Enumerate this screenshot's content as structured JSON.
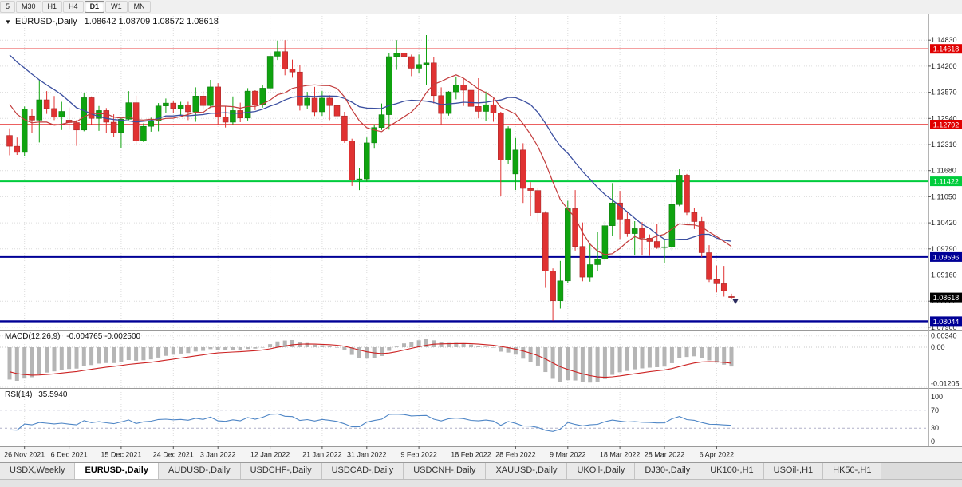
{
  "toolbar": {
    "periods": [
      {
        "label": "5"
      },
      {
        "label": "M30"
      },
      {
        "label": "H1"
      },
      {
        "label": "H4"
      },
      {
        "label": "D1",
        "active": true
      },
      {
        "label": "W1"
      },
      {
        "label": "MN"
      }
    ]
  },
  "chart": {
    "symbol": "EURUSD-,Daily",
    "ohlc": "1.08642 1.08709 1.08572 1.08618",
    "price_axis": {
      "ticks": [
        1.1483,
        1.142,
        1.1357,
        1.1294,
        1.1231,
        1.1168,
        1.1105,
        1.1042,
        1.0979,
        1.0916,
        1.0853,
        1.079
      ]
    },
    "hlines": [
      {
        "price": 1.14618,
        "label": "1.14618",
        "color": "#e00000",
        "width": 1.2
      },
      {
        "price": 1.12792,
        "label": "1.12792",
        "color": "#e00000",
        "width": 1.2
      },
      {
        "price": 1.11422,
        "label": "1.11422",
        "color": "#00cc3c",
        "width": 2
      },
      {
        "price": 1.09596,
        "label": "1.09596",
        "color": "#000096",
        "width": 2
      },
      {
        "price": 1.08044,
        "label": "1.08044",
        "color": "#000096",
        "width": 2.4
      }
    ],
    "current_price": {
      "price": 1.08618,
      "label": "1.08618",
      "color": "#000000"
    },
    "colors": {
      "up": "#0fa30f",
      "up_dark": "#0a720a",
      "down": "#e03232",
      "down_dark": "#9d1f1f",
      "ma_fast": "#c23b3b",
      "ma_slow": "#3b4fa0",
      "grid": "#dcdcdc"
    },
    "date_ticks": [
      {
        "i": 2,
        "label": "26 Nov 2021"
      },
      {
        "i": 8,
        "label": "6 Dec 2021"
      },
      {
        "i": 15,
        "label": "15 Dec 2021"
      },
      {
        "i": 22,
        "label": "24 Dec 2021"
      },
      {
        "i": 28,
        "label": "3 Jan 2022"
      },
      {
        "i": 35,
        "label": "12 Jan 2022"
      },
      {
        "i": 42,
        "label": "21 Jan 2022"
      },
      {
        "i": 48,
        "label": "31 Jan 2022"
      },
      {
        "i": 55,
        "label": "9 Feb 2022"
      },
      {
        "i": 62,
        "label": "18 Feb 2022"
      },
      {
        "i": 68,
        "label": "28 Feb 2022"
      },
      {
        "i": 75,
        "label": "9 Mar 2022"
      },
      {
        "i": 82,
        "label": "18 Mar 2022"
      },
      {
        "i": 88,
        "label": "28 Mar 2022"
      },
      {
        "i": 95,
        "label": "6 Apr 2022"
      }
    ],
    "pre_closes": [
      1.1653,
      1.1624,
      1.1644,
      1.161,
      1.1593,
      1.1601,
      1.1605,
      1.168,
      1.156,
      1.1558,
      1.1604,
      1.1587,
      1.1611,
      1.1568,
      1.1523,
      1.1556,
      1.1592,
      1.1589,
      1.1478,
      1.145,
      1.1445,
      1.1369,
      1.132,
      1.1319,
      1.137,
      1.1291,
      1.1238,
      1.125
    ],
    "candles": [
      [
        1.1253,
        1.127,
        1.1205,
        1.1227
      ],
      [
        1.1227,
        1.1248,
        1.1206,
        1.1212
      ],
      [
        1.1212,
        1.1323,
        1.1203,
        1.1317
      ],
      [
        1.13,
        1.1316,
        1.1258,
        1.129
      ],
      [
        1.129,
        1.1387,
        1.1236,
        1.1339
      ],
      [
        1.1339,
        1.136,
        1.1305,
        1.1318
      ],
      [
        1.1318,
        1.1348,
        1.129,
        1.1297
      ],
      [
        1.1297,
        1.1334,
        1.1266,
        1.1311
      ],
      [
        1.129,
        1.132,
        1.1267,
        1.1284
      ],
      [
        1.1284,
        1.129,
        1.1228,
        1.1266
      ],
      [
        1.1266,
        1.1355,
        1.1263,
        1.1344
      ],
      [
        1.1344,
        1.1347,
        1.128,
        1.1294
      ],
      [
        1.1294,
        1.1324,
        1.1264,
        1.1313
      ],
      [
        1.1313,
        1.1319,
        1.126,
        1.1285
      ],
      [
        1.1285,
        1.1304,
        1.125,
        1.126
      ],
      [
        1.126,
        1.1298,
        1.1222,
        1.1292
      ],
      [
        1.1292,
        1.136,
        1.129,
        1.1332
      ],
      [
        1.1332,
        1.1349,
        1.1233,
        1.124
      ],
      [
        1.124,
        1.1282,
        1.1237,
        1.1275
      ],
      [
        1.1275,
        1.1296,
        1.1262,
        1.1288
      ],
      [
        1.1288,
        1.1331,
        1.1263,
        1.1324
      ],
      [
        1.1324,
        1.1342,
        1.1308,
        1.1331
      ],
      [
        1.1331,
        1.1336,
        1.1308,
        1.1318
      ],
      [
        1.1318,
        1.1334,
        1.1302,
        1.1326
      ],
      [
        1.1326,
        1.1334,
        1.129,
        1.131
      ],
      [
        1.131,
        1.1369,
        1.1286,
        1.1348
      ],
      [
        1.1348,
        1.136,
        1.1315,
        1.1325
      ],
      [
        1.1325,
        1.1387,
        1.1319,
        1.137
      ],
      [
        1.137,
        1.1379,
        1.1279,
        1.1297
      ],
      [
        1.1297,
        1.1323,
        1.1272,
        1.1285
      ],
      [
        1.1285,
        1.1347,
        1.128,
        1.1313
      ],
      [
        1.1313,
        1.1332,
        1.1285,
        1.1295
      ],
      [
        1.1295,
        1.1367,
        1.1289,
        1.136
      ],
      [
        1.136,
        1.1362,
        1.1314,
        1.1327
      ],
      [
        1.1327,
        1.1375,
        1.132,
        1.1367
      ],
      [
        1.1367,
        1.1453,
        1.136,
        1.1444
      ],
      [
        1.1444,
        1.1482,
        1.1435,
        1.1455
      ],
      [
        1.1455,
        1.1483,
        1.1398,
        1.1413
      ],
      [
        1.1413,
        1.1436,
        1.1392,
        1.1406
      ],
      [
        1.1406,
        1.1422,
        1.1313,
        1.1325
      ],
      [
        1.1325,
        1.1358,
        1.1316,
        1.1343
      ],
      [
        1.1343,
        1.137,
        1.13,
        1.131
      ],
      [
        1.131,
        1.136,
        1.13,
        1.1343
      ],
      [
        1.1343,
        1.135,
        1.129,
        1.1325
      ],
      [
        1.1325,
        1.133,
        1.1264,
        1.13
      ],
      [
        1.13,
        1.131,
        1.1235,
        1.124
      ],
      [
        1.124,
        1.1245,
        1.1131,
        1.1145
      ],
      [
        1.1145,
        1.1175,
        1.1121,
        1.1148
      ],
      [
        1.1148,
        1.1248,
        1.1141,
        1.1235
      ],
      [
        1.1235,
        1.128,
        1.1221,
        1.1272
      ],
      [
        1.1272,
        1.133,
        1.1266,
        1.1303
      ],
      [
        1.1303,
        1.1452,
        1.1267,
        1.1443
      ],
      [
        1.1443,
        1.1483,
        1.1411,
        1.1451
      ],
      [
        1.1451,
        1.1465,
        1.1415,
        1.1443
      ],
      [
        1.1443,
        1.1448,
        1.1396,
        1.1415
      ],
      [
        1.1415,
        1.1448,
        1.1403,
        1.1424
      ],
      [
        1.1424,
        1.1495,
        1.1375,
        1.1428
      ],
      [
        1.1428,
        1.1441,
        1.133,
        1.1349
      ],
      [
        1.1349,
        1.1369,
        1.1278,
        1.1306
      ],
      [
        1.1306,
        1.136,
        1.1301,
        1.1358
      ],
      [
        1.1358,
        1.1395,
        1.134,
        1.1374
      ],
      [
        1.1374,
        1.1391,
        1.1324,
        1.1362
      ],
      [
        1.1362,
        1.1369,
        1.1312,
        1.1323
      ],
      [
        1.1323,
        1.1391,
        1.1294,
        1.1311
      ],
      [
        1.1311,
        1.1359,
        1.1287,
        1.1327
      ],
      [
        1.1327,
        1.1342,
        1.1286,
        1.1307
      ],
      [
        1.1307,
        1.131,
        1.1106,
        1.1193
      ],
      [
        1.1193,
        1.1275,
        1.1184,
        1.127
      ],
      [
        1.116,
        1.1247,
        1.1121,
        1.1218
      ],
      [
        1.1218,
        1.1234,
        1.109,
        1.1125
      ],
      [
        1.1125,
        1.114,
        1.1058,
        1.112
      ],
      [
        1.112,
        1.1125,
        1.1045,
        1.1066
      ],
      [
        1.1066,
        1.107,
        1.0885,
        1.0926
      ],
      [
        1.0926,
        1.0932,
        1.0806,
        1.0854
      ],
      [
        1.0854,
        1.095,
        1.0835,
        1.0902
      ],
      [
        1.0902,
        1.1095,
        1.0896,
        1.1076
      ],
      [
        1.1076,
        1.1121,
        1.0975,
        1.0985
      ],
      [
        1.0985,
        1.1043,
        1.0901,
        1.0911
      ],
      [
        1.0911,
        1.0992,
        1.09,
        1.0941
      ],
      [
        1.0941,
        1.102,
        1.0925,
        1.0955
      ],
      [
        1.0955,
        1.1046,
        1.095,
        1.1035
      ],
      [
        1.1035,
        1.1138,
        1.101,
        1.109
      ],
      [
        1.109,
        1.1119,
        1.1003,
        1.1051
      ],
      [
        1.1051,
        1.1069,
        1.1008,
        1.1016
      ],
      [
        1.1016,
        1.1046,
        1.0963,
        1.1028
      ],
      [
        1.1028,
        1.1044,
        1.0963,
        1.1005
      ],
      [
        1.1005,
        1.1014,
        1.0962,
        1.0997
      ],
      [
        1.0997,
        1.1039,
        1.0979,
        1.0982
      ],
      [
        1.0982,
        1.1,
        1.0944,
        1.0984
      ],
      [
        1.0984,
        1.1137,
        1.0975,
        1.1086
      ],
      [
        1.1086,
        1.1171,
        1.1082,
        1.1157
      ],
      [
        1.1157,
        1.116,
        1.1061,
        1.1067
      ],
      [
        1.1067,
        1.1077,
        1.1027,
        1.1045
      ],
      [
        1.1045,
        1.1056,
        1.0959,
        1.097
      ],
      [
        1.097,
        1.0988,
        1.0899,
        1.0905
      ],
      [
        1.0905,
        1.0939,
        1.0874,
        1.0895
      ],
      [
        1.0895,
        1.0938,
        1.0864,
        1.0878
      ],
      [
        1.08642,
        1.08709,
        1.08572,
        1.08618
      ]
    ]
  },
  "macd": {
    "name": "MACD(12,26,9)",
    "values": "-0.004765 -0.002500",
    "axis_top": "0.00340",
    "axis_zero": "0.00",
    "axis_bottom": "-0.01205",
    "bar_color": "#b5b5b5",
    "signal_color": "#cc2222"
  },
  "rsi": {
    "name": "RSI(14)",
    "value": "35.5940",
    "axis": [
      100,
      70,
      30,
      0
    ],
    "levels": [
      70,
      30
    ],
    "line_color": "#4f86c6"
  },
  "tabs": [
    {
      "label": "USDX,Weekly"
    },
    {
      "label": "EURUSD-,Daily",
      "active": true
    },
    {
      "label": "AUDUSD-,Daily"
    },
    {
      "label": "USDCHF-,Daily"
    },
    {
      "label": "USDCAD-,Daily"
    },
    {
      "label": "USDCNH-,Daily"
    },
    {
      "label": "XAUUSD-,Daily"
    },
    {
      "label": "UKOil-,Daily"
    },
    {
      "label": "DJ30-,Daily"
    },
    {
      "label": "UK100-,H1"
    },
    {
      "label": "USOil-,H1"
    },
    {
      "label": "HK50-,H1"
    }
  ]
}
